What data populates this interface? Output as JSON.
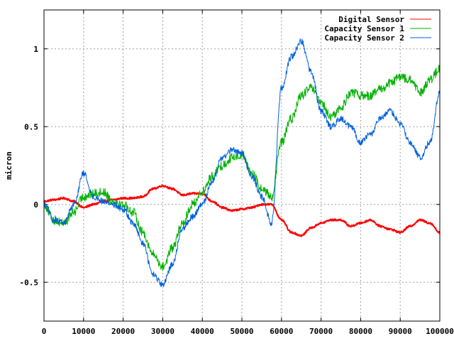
{
  "chart_data": {
    "type": "line",
    "title": "",
    "xlabel": "",
    "ylabel": "micron",
    "xlim": [
      0,
      100000
    ],
    "ylim": [
      -0.75,
      1.25
    ],
    "grid": true,
    "legend_position": "top-right",
    "x_ticks": [
      0,
      10000,
      20000,
      30000,
      40000,
      50000,
      60000,
      70000,
      80000,
      90000,
      100000
    ],
    "x_tick_labels": [
      "0",
      "10000",
      "20000",
      "30000",
      "40000",
      "50000",
      "60000",
      "70000",
      "80000",
      "90000",
      "100000"
    ],
    "y_ticks": [
      -0.5,
      0,
      0.5,
      1
    ],
    "y_tick_labels": [
      "-0.5",
      "0",
      "0.5",
      "1"
    ],
    "x": [
      0,
      2500,
      5000,
      7500,
      10000,
      12500,
      15000,
      17500,
      20000,
      22500,
      25000,
      27500,
      30000,
      32500,
      35000,
      37500,
      40000,
      42500,
      45000,
      47500,
      50000,
      52500,
      55000,
      57500,
      60000,
      62500,
      65000,
      67500,
      70000,
      72500,
      75000,
      77500,
      80000,
      82500,
      85000,
      87500,
      90000,
      92500,
      95000,
      97500,
      100000
    ],
    "series": [
      {
        "name": "Digital Sensor",
        "color": "#ff0000",
        "values": [
          0.02,
          0.03,
          0.04,
          0.02,
          -0.02,
          0.0,
          0.02,
          0.03,
          0.04,
          0.04,
          0.05,
          0.1,
          0.12,
          0.1,
          0.06,
          0.07,
          0.07,
          0.02,
          -0.02,
          -0.04,
          -0.03,
          -0.02,
          0.0,
          0.0,
          -0.1,
          -0.18,
          -0.2,
          -0.15,
          -0.12,
          -0.1,
          -0.1,
          -0.14,
          -0.12,
          -0.1,
          -0.14,
          -0.16,
          -0.18,
          -0.14,
          -0.1,
          -0.12,
          -0.18
        ]
      },
      {
        "name": "Capacity Sensor 1",
        "color": "#00b000",
        "values": [
          0.0,
          -0.1,
          -0.12,
          -0.05,
          0.05,
          0.07,
          0.08,
          0.02,
          0.0,
          -0.05,
          -0.18,
          -0.32,
          -0.4,
          -0.28,
          -0.12,
          0.0,
          0.08,
          0.18,
          0.25,
          0.3,
          0.32,
          0.2,
          0.1,
          0.05,
          0.4,
          0.55,
          0.7,
          0.75,
          0.65,
          0.56,
          0.62,
          0.72,
          0.7,
          0.7,
          0.74,
          0.78,
          0.82,
          0.8,
          0.72,
          0.8,
          0.87
        ]
      },
      {
        "name": "Capacity Sensor 2",
        "color": "#0060e0",
        "values": [
          0.0,
          -0.1,
          -0.12,
          0.0,
          0.2,
          0.05,
          0.02,
          0.0,
          -0.03,
          -0.12,
          -0.25,
          -0.45,
          -0.52,
          -0.38,
          -0.15,
          -0.08,
          0.0,
          0.15,
          0.3,
          0.35,
          0.33,
          0.18,
          0.05,
          -0.12,
          0.75,
          0.95,
          1.05,
          0.85,
          0.6,
          0.5,
          0.55,
          0.5,
          0.4,
          0.45,
          0.55,
          0.6,
          0.52,
          0.4,
          0.3,
          0.4,
          0.72
        ]
      }
    ]
  }
}
